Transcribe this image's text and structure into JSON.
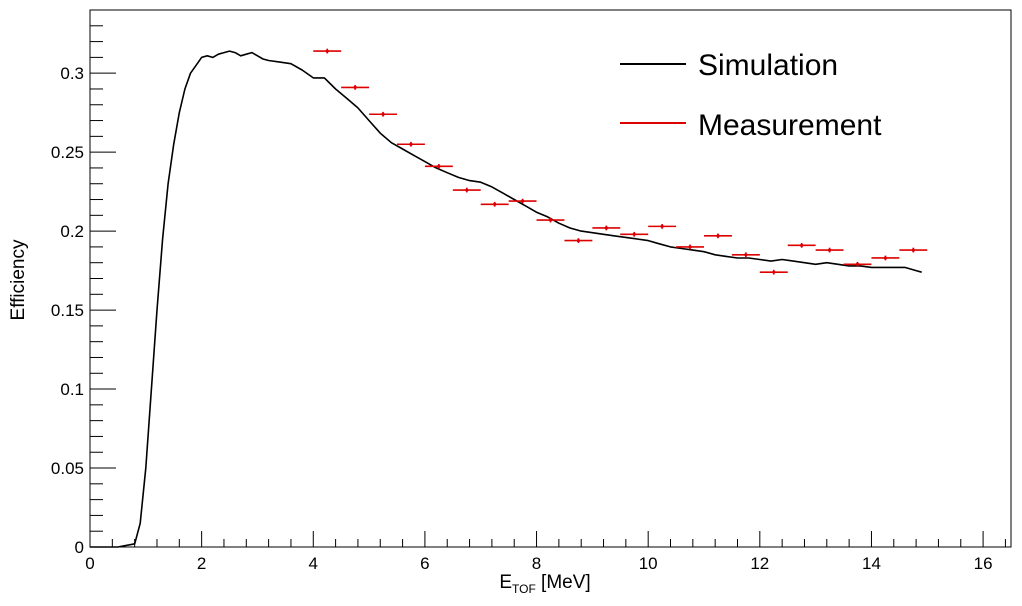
{
  "chart_data": {
    "type": "line",
    "xlabel_main": "E",
    "xlabel_sub": "TOF",
    "xlabel_unit": " [MeV]",
    "ylabel": "Efficiency",
    "xlim": [
      0,
      16.5
    ],
    "ylim": [
      0,
      0.34
    ],
    "x_ticks": [
      0,
      2,
      4,
      6,
      8,
      10,
      12,
      14,
      16
    ],
    "x_tick_labels": [
      "0",
      "2",
      "4",
      "6",
      "8",
      "10",
      "12",
      "14",
      "16"
    ],
    "y_ticks": [
      0,
      0.05,
      0.1,
      0.15,
      0.2,
      0.25,
      0.3
    ],
    "y_tick_labels": [
      "0",
      "0.05",
      "0.1",
      "0.15",
      "0.2",
      "0.25",
      "0.3"
    ],
    "legend_position": "top-right",
    "colors": {
      "simulation": "#000000",
      "measurement": "#dd0000"
    },
    "series": [
      {
        "name": "Simulation",
        "style": "line",
        "x": [
          0,
          0.5,
          0.8,
          0.9,
          1.0,
          1.1,
          1.2,
          1.3,
          1.4,
          1.5,
          1.6,
          1.7,
          1.8,
          1.9,
          2.0,
          2.1,
          2.2,
          2.3,
          2.4,
          2.5,
          2.6,
          2.7,
          2.8,
          2.9,
          3.0,
          3.1,
          3.2,
          3.4,
          3.6,
          3.8,
          4.0,
          4.2,
          4.4,
          4.6,
          4.8,
          5.0,
          5.2,
          5.4,
          5.6,
          5.8,
          6.0,
          6.2,
          6.4,
          6.6,
          6.8,
          7.0,
          7.2,
          7.4,
          7.6,
          7.8,
          8.0,
          8.2,
          8.4,
          8.6,
          8.8,
          9.0,
          9.2,
          9.4,
          9.6,
          9.8,
          10.0,
          10.2,
          10.4,
          10.6,
          10.8,
          11.0,
          11.2,
          11.4,
          11.6,
          11.8,
          12.0,
          12.2,
          12.4,
          12.6,
          12.8,
          13.0,
          13.2,
          13.4,
          13.6,
          13.8,
          14.0,
          14.2,
          14.4,
          14.6,
          14.8,
          14.9
        ],
        "y": [
          0,
          0,
          0.002,
          0.015,
          0.05,
          0.1,
          0.15,
          0.195,
          0.23,
          0.255,
          0.275,
          0.29,
          0.3,
          0.305,
          0.31,
          0.311,
          0.31,
          0.312,
          0.313,
          0.314,
          0.313,
          0.311,
          0.312,
          0.313,
          0.311,
          0.309,
          0.308,
          0.307,
          0.306,
          0.302,
          0.297,
          0.297,
          0.29,
          0.284,
          0.278,
          0.27,
          0.262,
          0.256,
          0.252,
          0.248,
          0.244,
          0.24,
          0.237,
          0.234,
          0.232,
          0.231,
          0.228,
          0.224,
          0.22,
          0.216,
          0.212,
          0.209,
          0.205,
          0.202,
          0.2,
          0.199,
          0.198,
          0.197,
          0.196,
          0.195,
          0.194,
          0.192,
          0.19,
          0.189,
          0.188,
          0.187,
          0.185,
          0.184,
          0.183,
          0.183,
          0.182,
          0.181,
          0.182,
          0.181,
          0.18,
          0.179,
          0.18,
          0.179,
          0.178,
          0.178,
          0.177,
          0.177,
          0.177,
          0.177,
          0.175,
          0.174
        ]
      },
      {
        "name": "Measurement",
        "style": "errorbar",
        "x": [
          4.25,
          4.75,
          5.25,
          5.75,
          6.25,
          6.75,
          7.25,
          7.75,
          8.25,
          8.75,
          9.25,
          9.75,
          10.25,
          10.75,
          11.25,
          11.75,
          12.25,
          12.75,
          13.25,
          13.75,
          14.25,
          14.75
        ],
        "y": [
          0.314,
          0.291,
          0.274,
          0.255,
          0.241,
          0.226,
          0.217,
          0.219,
          0.207,
          0.194,
          0.202,
          0.198,
          0.203,
          0.19,
          0.197,
          0.185,
          0.174,
          0.191,
          0.188,
          0.179,
          0.183,
          0.188
        ],
        "xerr": 0.25,
        "yerr": 0.0015
      }
    ]
  }
}
